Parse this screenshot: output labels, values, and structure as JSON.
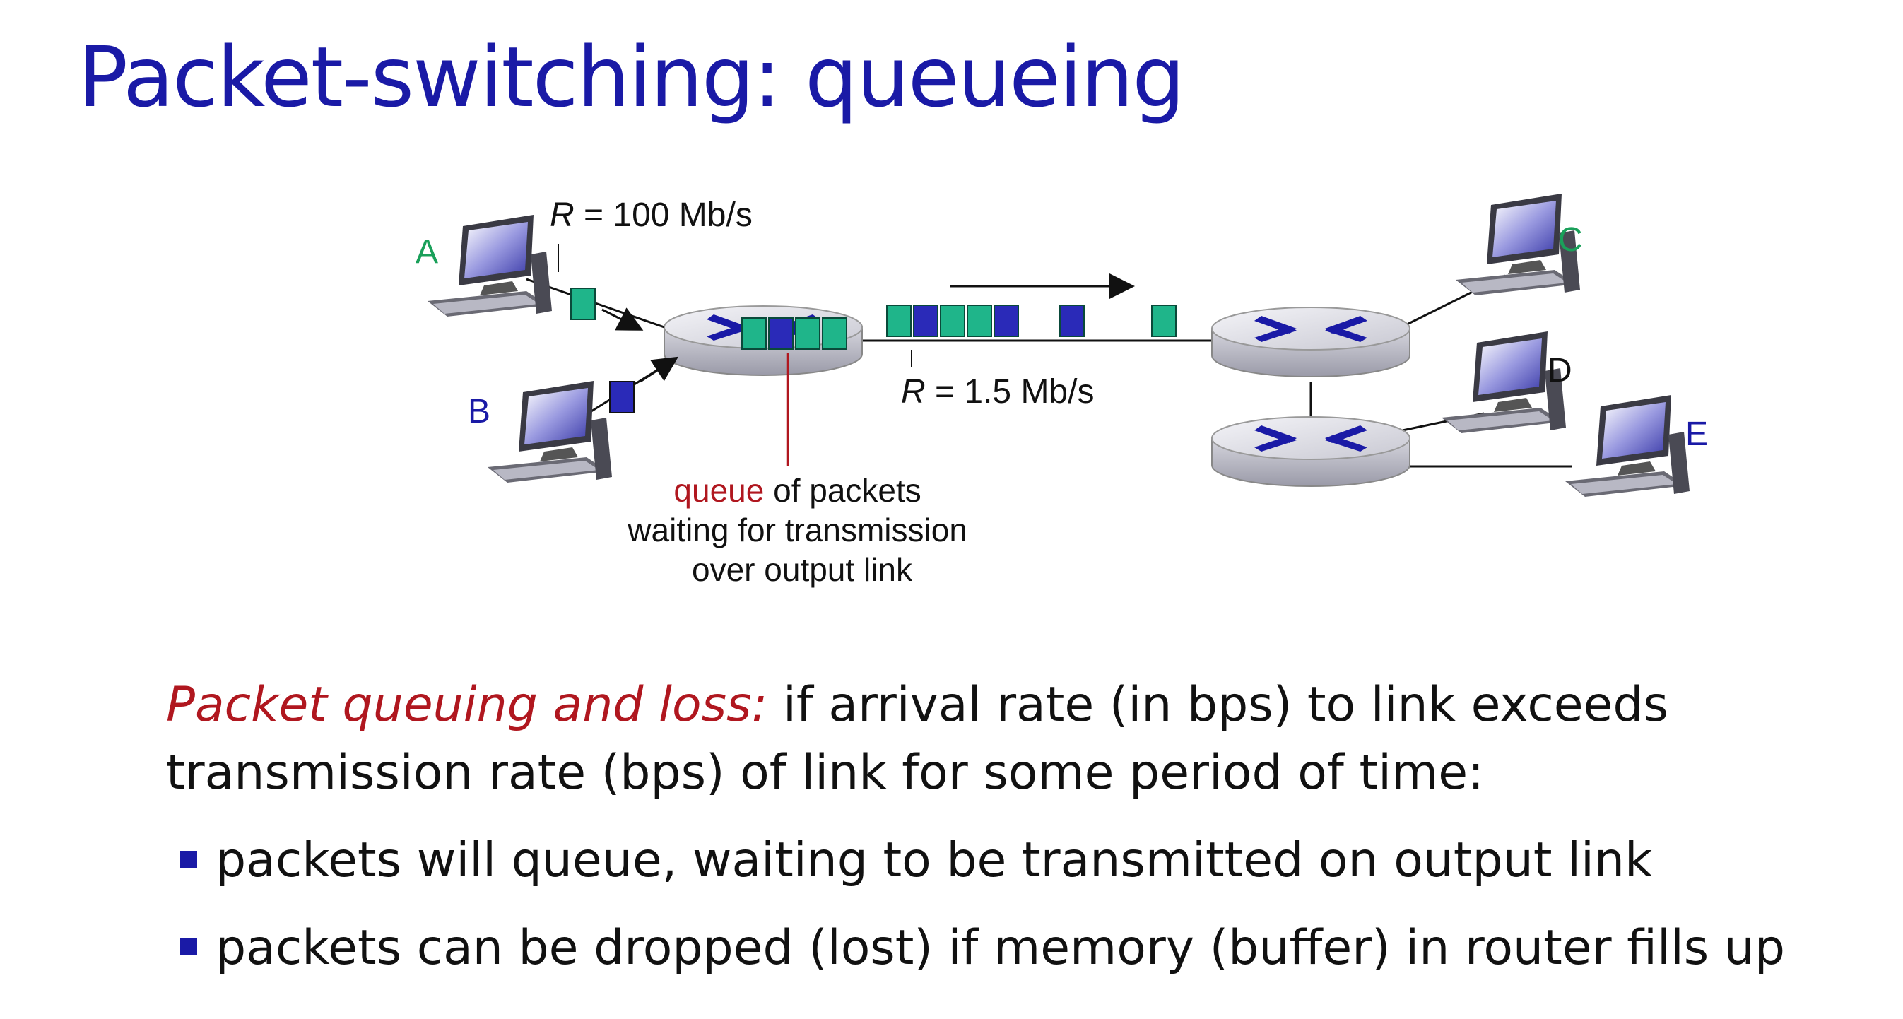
{
  "title": "Packet-switching: queueing",
  "diagram": {
    "hosts": [
      {
        "name": "A",
        "color": "#1aa05a"
      },
      {
        "name": "B",
        "color": "#1a1aa6"
      },
      {
        "name": "C",
        "color": "#1aa05a"
      },
      {
        "name": "D",
        "color": "#111111"
      },
      {
        "name": "E",
        "color": "#1a1aa6"
      }
    ],
    "link_in_rate_var": "R",
    "link_in_rate_value": " = 100 Mb/s",
    "link_out_rate_var": "R",
    "link_out_rate_value": " = 1.5 Mb/s",
    "queue_word": "queue",
    "queue_caption_rest": " of packets",
    "queue_caption_line2": "waiting for transmission",
    "queue_caption_line3": "over output link",
    "colors": {
      "packet_green": "#1fb58a",
      "packet_blue": "#2a2ab8",
      "router_cross": "#1a1aa6",
      "queue_red": "#b0171f"
    }
  },
  "body": {
    "lead": "Packet queuing and loss:",
    "lead_rest": " if arrival rate (in bps) to link exceeds transmission rate (bps) of link for some period of time:",
    "bullets": [
      "packets will queue, waiting to be transmitted on output link",
      "packets can be dropped (lost) if memory (buffer) in router fills up"
    ]
  }
}
